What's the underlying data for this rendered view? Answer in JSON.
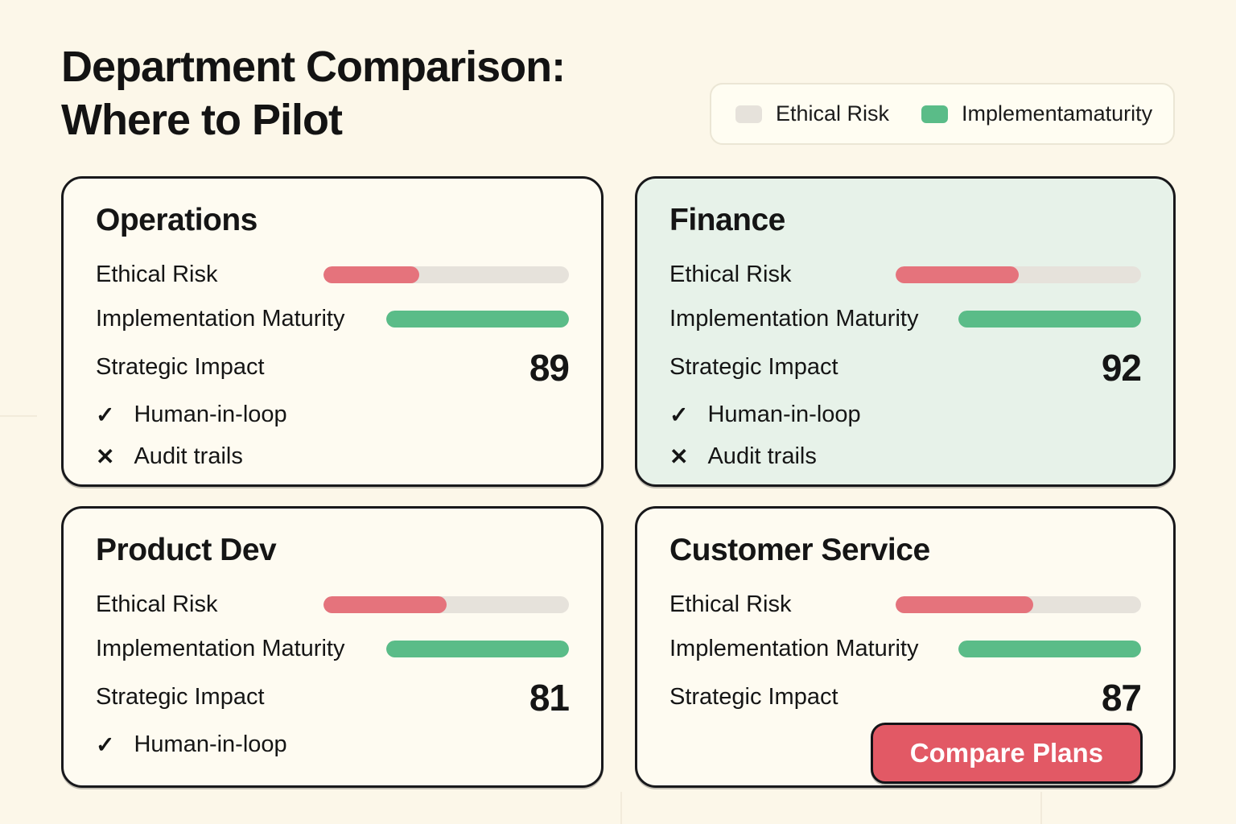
{
  "page": {
    "title": "Department Comparison:\nWhere to Pilot"
  },
  "legend": {
    "items": [
      {
        "label": "Ethical Risk",
        "color": "#E6E2DB"
      },
      {
        "label": "Implementamaturity",
        "color": "#5ABC88"
      }
    ]
  },
  "metric_labels": {
    "ethical_risk": "Ethical Risk",
    "implementation_maturity": "Implementation Maturity",
    "strategic_impact": "Strategic Impact"
  },
  "colors": {
    "background": "#FCF7E9",
    "card_background": "#FEFBF1",
    "highlight_card_background": "#E7F2E9",
    "card_border": "#18181B",
    "bar_track": "#E6E2DB",
    "risk_fill": "#E5737C",
    "maturity_fill": "#5ABC88",
    "button_background": "#E25965",
    "button_text": "#FFFFFF",
    "text": "#151515"
  },
  "cards": [
    {
      "name": "Operations",
      "ethical_risk_pct": 39,
      "implementation_maturity_pct": 100,
      "strategic_impact": "89",
      "checks": [
        {
          "icon": "check",
          "glyph": "✓",
          "label": "Human-in-loop"
        },
        {
          "icon": "cross",
          "glyph": "✕",
          "label": "Audit trails"
        }
      ]
    },
    {
      "name": "Finance",
      "highlighted": true,
      "ethical_risk_pct": 50,
      "implementation_maturity_pct": 100,
      "strategic_impact": "92",
      "checks": [
        {
          "icon": "check",
          "glyph": "✓",
          "label": "Human-in-loop"
        },
        {
          "icon": "cross",
          "glyph": "✕",
          "label": "Audit trails"
        }
      ]
    },
    {
      "name": "Product Dev",
      "ethical_risk_pct": 50,
      "implementation_maturity_pct": 100,
      "strategic_impact": "81",
      "checks": [
        {
          "icon": "check",
          "glyph": "✓",
          "label": "Human-in-loop"
        }
      ]
    },
    {
      "name": "Customer Service",
      "ethical_risk_pct": 56,
      "implementation_maturity_pct": 100,
      "strategic_impact": "87",
      "checks": [],
      "button_label": "Compare Plans"
    }
  ],
  "chart_data": {
    "type": "bar",
    "title": "Department Comparison: Where to Pilot",
    "categories": [
      "Operations",
      "Finance",
      "Product Dev",
      "Customer Service"
    ],
    "series": [
      {
        "name": "Ethical Risk",
        "values": [
          39,
          50,
          50,
          56
        ]
      },
      {
        "name": "Implementation Maturity",
        "values": [
          100,
          100,
          100,
          100
        ]
      },
      {
        "name": "Strategic Impact",
        "values": [
          89,
          92,
          81,
          87
        ]
      }
    ],
    "features": [
      {
        "department": "Operations",
        "human_in_loop": true,
        "audit_trails": false
      },
      {
        "department": "Finance",
        "human_in_loop": true,
        "audit_trails": false
      },
      {
        "department": "Product Dev",
        "human_in_loop": true,
        "audit_trails": null
      },
      {
        "department": "Customer Service",
        "human_in_loop": null,
        "audit_trails": null
      }
    ],
    "value_range": [
      0,
      100
    ],
    "grid": false,
    "legend_position": "top-right",
    "legend_entries": [
      "Ethical Risk",
      "Implementamaturity"
    ]
  }
}
